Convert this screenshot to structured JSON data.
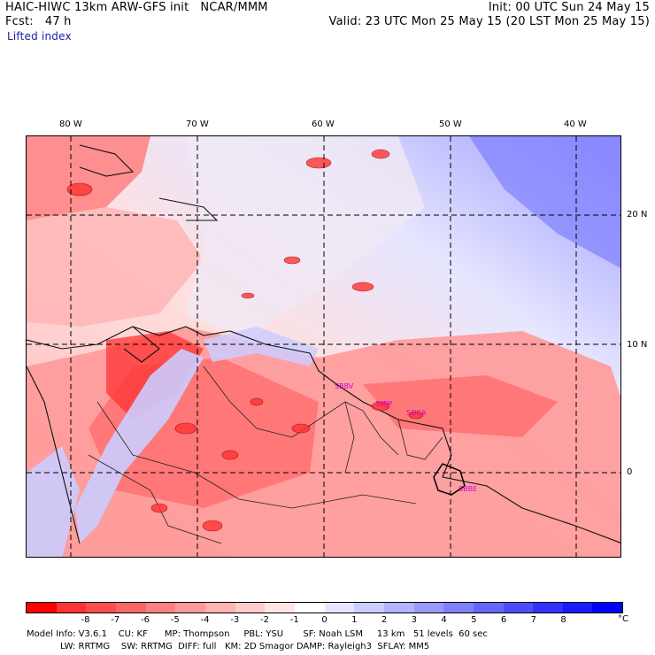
{
  "header": {
    "title_left": "HAIC-HIWC 13km ARW-GFS init   NCAR/MMM",
    "fcst": "Fcst:   47 h",
    "field": "Lifted index",
    "init": "Init: 00 UTC Sun 24 May 15",
    "valid": "Valid: 23 UTC Mon 25 May 15 (20 LST Mon 25 May 15)"
  },
  "map": {
    "lon_labels": [
      "80 W",
      "70 W",
      "60 W",
      "50 W",
      "40 W"
    ],
    "lat_labels": [
      "20 N",
      "10 N",
      "0"
    ],
    "city_labels": [
      "SBBV",
      "SMJP",
      "SOCA",
      "SBBE"
    ]
  },
  "colorbar": {
    "colors": [
      "#ff0000",
      "#ff3333",
      "#ff4d4d",
      "#ff6666",
      "#ff8080",
      "#ff9999",
      "#ffb3b3",
      "#ffcccc",
      "#ffe6e6",
      "#ffffff",
      "#e6e6ff",
      "#ccccff",
      "#b3b3ff",
      "#9999ff",
      "#8080ff",
      "#6666ff",
      "#4d4dff",
      "#3333ff",
      "#1a1aff",
      "#0000ff"
    ],
    "tick_labels": [
      "-8",
      "-7",
      "-6",
      "-5",
      "-4",
      "-3",
      "-2",
      "-1",
      "0",
      "1",
      "2",
      "3",
      "4",
      "5",
      "6",
      "7",
      "8"
    ],
    "unit": "°C"
  },
  "model_info": {
    "line1": "Model Info: V3.6.1    CU: KF      MP: Thompson     PBL: YSU       SF: Noah LSM     13 km   51 levels  60 sec",
    "line2": "LW: RRTMG    SW: RRTMG  DIFF: full   KM: 2D Smagor DAMP: Rayleigh3  SFLAY: MM5"
  }
}
